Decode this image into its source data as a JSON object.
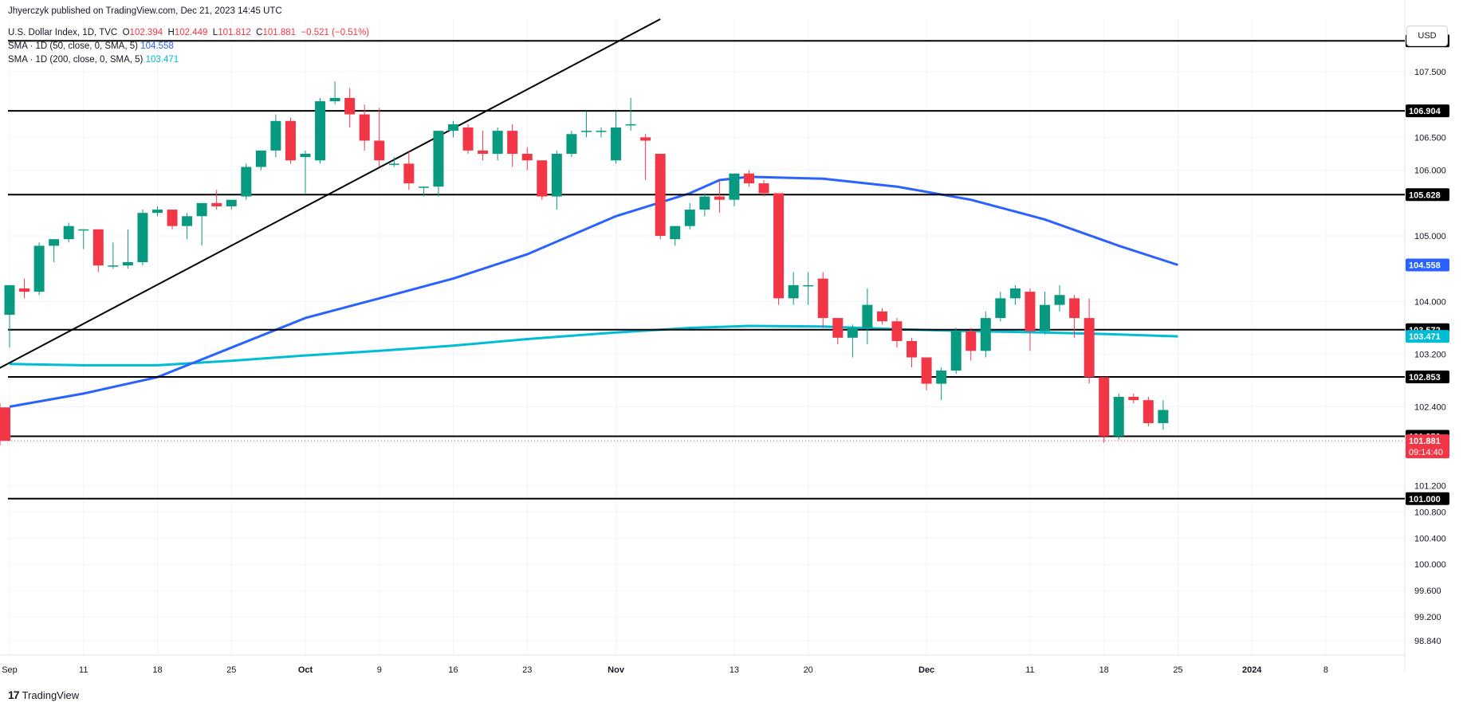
{
  "header": {
    "published_by": "Jhyerczyk published on TradingView.com, Dec 21, 2023 14:45 UTC",
    "symbol_line": "U.S. Dollar Index, 1D, TVC",
    "ohlc": {
      "o_label": "O",
      "o": "102.394",
      "h_label": "H",
      "h": "102.449",
      "l_label": "L",
      "l": "101.812",
      "c_label": "C",
      "c": "101.881",
      "change": "−0.521 (−0.51%)"
    },
    "sma50_label": "SMA · 1D (50, close, 0, SMA, 5)",
    "sma50_value": "104.558",
    "sma200_label": "SMA · 1D (200, close, 0, SMA, 5)",
    "sma200_value": "103.471"
  },
  "currency_button": "USD",
  "footer": {
    "brand": "TradingView"
  },
  "colors": {
    "up": "#089981",
    "down": "#f23645",
    "sma50": "#2962ff",
    "sma200": "#00bcd4",
    "level_line": "#000000",
    "trendline": "#000000"
  },
  "chart_data": {
    "type": "candlestick",
    "x_ticks": [
      {
        "i": 0,
        "label": "Sep"
      },
      {
        "i": 5,
        "label": "11"
      },
      {
        "i": 10,
        "label": "18"
      },
      {
        "i": 15,
        "label": "25"
      },
      {
        "i": 20,
        "label": "Oct"
      },
      {
        "i": 25,
        "label": "9"
      },
      {
        "i": 30,
        "label": "16"
      },
      {
        "i": 35,
        "label": "23"
      },
      {
        "i": 41,
        "label": "Nov"
      },
      {
        "i": 49,
        "label": "13"
      },
      {
        "i": 54,
        "label": "20"
      },
      {
        "i": 62,
        "label": "Dec"
      },
      {
        "i": 69,
        "label": "11"
      },
      {
        "i": 74,
        "label": "18"
      },
      {
        "i": 79,
        "label": "25"
      },
      {
        "i": 84,
        "label": "2024"
      },
      {
        "i": 89,
        "label": "8"
      }
    ],
    "y_ticks": [
      "107.500",
      "106.500",
      "106.000",
      "105.000",
      "104.000",
      "103.200",
      "102.400",
      "101.200",
      "100.800",
      "100.400",
      "100.000",
      "99.600",
      "99.200",
      "98.840"
    ],
    "ylim": [
      98.62,
      108.3
    ],
    "candles": [
      [
        103.8,
        104.25,
        103.3,
        104.25
      ],
      [
        104.2,
        104.35,
        104.05,
        104.15
      ],
      [
        104.15,
        104.9,
        104.1,
        104.85
      ],
      [
        104.85,
        104.95,
        104.6,
        104.95
      ],
      [
        104.95,
        105.2,
        104.9,
        105.15
      ],
      [
        105.1,
        105.1,
        104.8,
        105.1
      ],
      [
        105.1,
        105.1,
        104.45,
        104.55
      ],
      [
        104.55,
        104.9,
        104.5,
        104.55
      ],
      [
        104.55,
        105.1,
        104.5,
        104.6
      ],
      [
        104.6,
        105.4,
        104.55,
        105.35
      ],
      [
        105.35,
        105.45,
        105.3,
        105.4
      ],
      [
        105.4,
        105.4,
        105.1,
        105.15
      ],
      [
        105.15,
        105.35,
        104.95,
        105.3
      ],
      [
        105.3,
        105.5,
        104.85,
        105.5
      ],
      [
        105.5,
        105.7,
        105.4,
        105.45
      ],
      [
        105.45,
        105.55,
        105.4,
        105.55
      ],
      [
        105.6,
        106.1,
        105.55,
        106.05
      ],
      [
        106.05,
        106.3,
        106.0,
        106.3
      ],
      [
        106.3,
        106.85,
        106.2,
        106.75
      ],
      [
        106.75,
        106.8,
        106.1,
        106.15
      ],
      [
        106.2,
        106.3,
        105.65,
        106.25
      ],
      [
        106.15,
        107.1,
        106.1,
        107.05
      ],
      [
        107.05,
        107.35,
        107.0,
        107.1
      ],
      [
        107.1,
        107.25,
        106.65,
        106.85
      ],
      [
        106.85,
        107.0,
        106.3,
        106.45
      ],
      [
        106.45,
        106.95,
        106.05,
        106.15
      ],
      [
        106.1,
        106.2,
        106.05,
        106.1
      ],
      [
        106.1,
        106.3,
        105.7,
        105.8
      ],
      [
        105.75,
        105.75,
        105.6,
        105.75
      ],
      [
        105.75,
        106.6,
        105.6,
        106.6
      ],
      [
        106.6,
        106.75,
        106.5,
        106.7
      ],
      [
        106.65,
        106.7,
        106.25,
        106.3
      ],
      [
        106.3,
        106.6,
        106.15,
        106.25
      ],
      [
        106.25,
        106.65,
        106.15,
        106.6
      ],
      [
        106.6,
        106.7,
        106.05,
        106.25
      ],
      [
        106.25,
        106.35,
        106.0,
        106.15
      ],
      [
        106.15,
        106.15,
        105.55,
        105.6
      ],
      [
        105.6,
        106.3,
        105.4,
        106.25
      ],
      [
        106.25,
        106.6,
        106.2,
        106.55
      ],
      [
        106.6,
        106.9,
        106.5,
        106.6
      ],
      [
        106.6,
        106.65,
        106.5,
        106.6
      ],
      [
        106.15,
        106.9,
        106.1,
        106.65
      ],
      [
        106.7,
        107.1,
        106.6,
        106.7
      ],
      [
        106.5,
        106.55,
        105.85,
        106.45
      ],
      [
        106.25,
        106.25,
        104.95,
        105.0
      ],
      [
        104.95,
        105.15,
        104.85,
        105.15
      ],
      [
        105.15,
        105.5,
        105.1,
        105.4
      ],
      [
        105.4,
        105.65,
        105.3,
        105.6
      ],
      [
        105.6,
        105.85,
        105.35,
        105.55
      ],
      [
        105.55,
        105.95,
        105.45,
        105.95
      ],
      [
        105.95,
        106.0,
        105.75,
        105.8
      ],
      [
        105.8,
        105.85,
        105.6,
        105.65
      ],
      [
        105.65,
        105.65,
        103.95,
        104.05
      ],
      [
        104.05,
        104.45,
        103.95,
        104.25
      ],
      [
        104.25,
        104.45,
        103.95,
        104.25
      ],
      [
        104.35,
        104.45,
        103.6,
        103.75
      ],
      [
        103.75,
        103.75,
        103.35,
        103.45
      ],
      [
        103.45,
        103.65,
        103.15,
        103.6
      ],
      [
        103.6,
        104.2,
        103.35,
        103.95
      ],
      [
        103.85,
        103.9,
        103.65,
        103.7
      ],
      [
        103.7,
        103.75,
        103.3,
        103.4
      ],
      [
        103.4,
        103.45,
        103.0,
        103.15
      ],
      [
        103.15,
        103.15,
        102.65,
        102.75
      ],
      [
        102.75,
        103.0,
        102.5,
        102.95
      ],
      [
        102.95,
        103.6,
        102.9,
        103.55
      ],
      [
        103.55,
        103.6,
        103.1,
        103.25
      ],
      [
        103.25,
        103.85,
        103.15,
        103.75
      ],
      [
        103.75,
        104.15,
        103.7,
        104.05
      ],
      [
        104.05,
        104.25,
        103.95,
        104.2
      ],
      [
        104.15,
        104.2,
        103.25,
        103.55
      ],
      [
        103.55,
        104.15,
        103.5,
        103.95
      ],
      [
        103.95,
        104.25,
        103.85,
        104.1
      ],
      [
        104.05,
        104.1,
        103.45,
        103.75
      ],
      [
        103.75,
        104.05,
        102.75,
        102.85
      ],
      [
        102.85,
        102.85,
        101.85,
        101.95
      ],
      [
        101.95,
        102.6,
        101.9,
        102.55
      ],
      [
        102.55,
        102.6,
        102.45,
        102.5
      ],
      [
        102.5,
        102.55,
        102.1,
        102.15
      ],
      [
        102.15,
        102.5,
        102.05,
        102.35
      ],
      [
        102.39,
        102.45,
        101.81,
        101.88
      ]
    ],
    "candle_slots": [
      0,
      1,
      2,
      3,
      4,
      5,
      6,
      7,
      8,
      9,
      10,
      11,
      12,
      13,
      14,
      15,
      16,
      17,
      18,
      19,
      20,
      21,
      22,
      23,
      24,
      25,
      26,
      27,
      28,
      29,
      30,
      31,
      32,
      33,
      34,
      35,
      36,
      37,
      38,
      39,
      40,
      41,
      42,
      43,
      44,
      45,
      46,
      47,
      48,
      49,
      50,
      51,
      52,
      53,
      54,
      55,
      56,
      57,
      58,
      59,
      60,
      61,
      62,
      63,
      64,
      65,
      66,
      67,
      68,
      69,
      70,
      71,
      72,
      73,
      74,
      75,
      76,
      77,
      78
    ],
    "sma50": [
      [
        0,
        102.4
      ],
      [
        5,
        102.6
      ],
      [
        10,
        102.85
      ],
      [
        15,
        103.3
      ],
      [
        20,
        103.75
      ],
      [
        25,
        104.05
      ],
      [
        30,
        104.35
      ],
      [
        35,
        104.72
      ],
      [
        41,
        105.3
      ],
      [
        46,
        105.65
      ],
      [
        48,
        105.85
      ],
      [
        50,
        105.9
      ],
      [
        55,
        105.87
      ],
      [
        60,
        105.75
      ],
      [
        65,
        105.55
      ],
      [
        70,
        105.25
      ],
      [
        75,
        104.85
      ],
      [
        79,
        104.558
      ]
    ],
    "sma200": [
      [
        0,
        103.05
      ],
      [
        5,
        103.03
      ],
      [
        10,
        103.03
      ],
      [
        15,
        103.1
      ],
      [
        20,
        103.18
      ],
      [
        25,
        103.25
      ],
      [
        30,
        103.33
      ],
      [
        35,
        103.43
      ],
      [
        41,
        103.53
      ],
      [
        46,
        103.6
      ],
      [
        50,
        103.63
      ],
      [
        55,
        103.62
      ],
      [
        60,
        103.58
      ],
      [
        65,
        103.55
      ],
      [
        70,
        103.53
      ],
      [
        75,
        103.5
      ],
      [
        79,
        103.471
      ]
    ],
    "horizontal_levels": [
      "107.970",
      "106.904",
      "105.628",
      "103.572",
      "102.853",
      "101.950",
      "101.000"
    ],
    "trendline": [
      [
        -1,
        102.95
      ],
      [
        44,
        108.3
      ]
    ],
    "price_labels": {
      "sma50": "104.558",
      "sma200": "103.471",
      "last_price": "101.881",
      "countdown": "09:14:40"
    }
  }
}
